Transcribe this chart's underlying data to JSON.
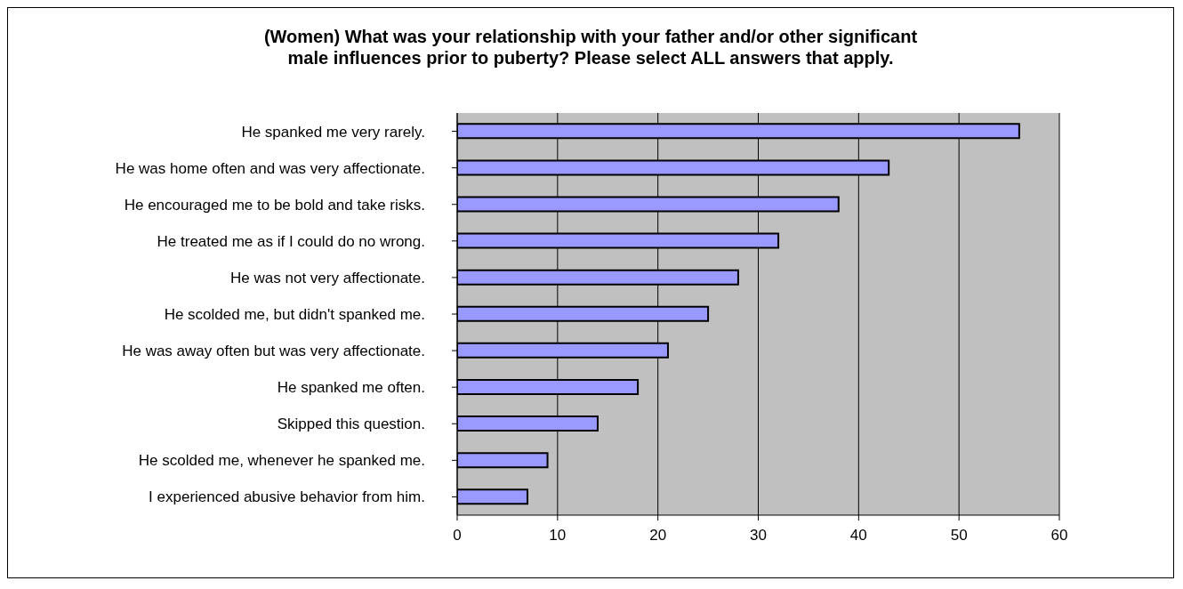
{
  "chart_data": {
    "type": "bar",
    "orientation": "horizontal",
    "title": "(Women) What was your relationship with your father and/or other significant male influences prior to puberty? Please select ALL answers that apply.",
    "categories": [
      "He spanked me very rarely.",
      "He was home often and was very affectionate.",
      "He encouraged me to be bold and take risks.",
      "He treated me as if I could do no wrong.",
      "He was not very affectionate.",
      "He scolded me, but didn't spanked me.",
      "He was away often but was very affectionate.",
      "He spanked me often.",
      "Skipped this question.",
      "He scolded me, whenever he spanked me.",
      "I experienced abusive behavior from him."
    ],
    "values": [
      56,
      43,
      38,
      32,
      28,
      25,
      21,
      18,
      14,
      9,
      7
    ],
    "color": "#9999ff",
    "xlim": [
      0,
      60
    ],
    "xticks": [
      0,
      10,
      20,
      30,
      40,
      50,
      60
    ],
    "grid": "x"
  }
}
